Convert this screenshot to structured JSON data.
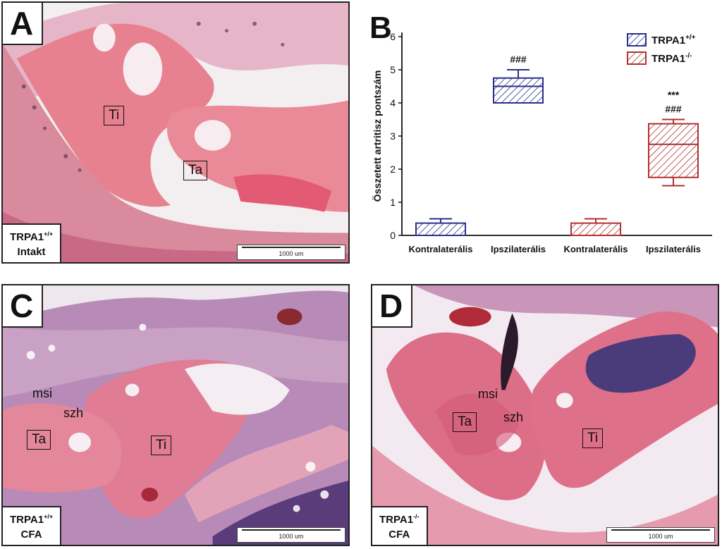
{
  "panels": {
    "a": {
      "letter": "A",
      "caption_line1": "TRPA1",
      "caption_sup": "+/+",
      "caption_line2": "Intakt",
      "scale": "1000 um",
      "labels": {
        "ti": "Ti",
        "ta": "Ta"
      }
    },
    "c": {
      "letter": "C",
      "caption_line1": "TRPA1",
      "caption_sup": "+/+",
      "caption_line2": "CFA",
      "scale": "1000 um",
      "labels": {
        "msi": "msi",
        "szh": "szh",
        "ta": "Ta",
        "ti": "Ti"
      }
    },
    "d": {
      "letter": "D",
      "caption_line1": "TRPA1",
      "caption_sup": "-/-",
      "caption_line2": "CFA",
      "scale": "1000 um",
      "labels": {
        "msi": "msi",
        "szh": "szh",
        "ta": "Ta",
        "ti": "Ti"
      }
    }
  },
  "chart_data": {
    "type": "boxplot",
    "panel_letter": "B",
    "ylabel": "Összetett artritisz pontszám",
    "ylim": [
      0,
      6
    ],
    "yticks": [
      "0",
      "1",
      "2",
      "3",
      "4",
      "5",
      "6"
    ],
    "categories": [
      "Kontralaterális",
      "Ipszilaterális",
      "Kontralaterális",
      "Ipszilaterális"
    ],
    "legend": {
      "placement": "top-right",
      "entries": [
        {
          "name": "TRPA1",
          "sup": "+/+",
          "color": "#2b2f8c"
        },
        {
          "name": "TRPA1",
          "sup": "-/-",
          "color": "#b03030"
        }
      ]
    },
    "boxes": [
      {
        "category": "Kontralaterális",
        "group": "TRPA1+/+",
        "color": "#2b2f8c",
        "min": 0,
        "q1": 0,
        "median": 0,
        "q3": 0.37,
        "max": 0.5,
        "annotations": []
      },
      {
        "category": "Ipszilaterális",
        "group": "TRPA1+/+",
        "color": "#2b2f8c",
        "min": 4,
        "q1": 4,
        "median": 4.5,
        "q3": 4.75,
        "max": 5,
        "annotations": [
          "###"
        ]
      },
      {
        "category": "Kontralaterális",
        "group": "TRPA1-/-",
        "color": "#b03030",
        "min": 0,
        "q1": 0,
        "median": 0,
        "q3": 0.37,
        "max": 0.5,
        "annotations": []
      },
      {
        "category": "Ipszilaterális",
        "group": "TRPA1-/-",
        "color": "#b03030",
        "min": 1.5,
        "q1": 1.75,
        "median": 2.75,
        "q3": 3.37,
        "max": 3.5,
        "annotations": [
          "***",
          "###"
        ]
      }
    ]
  }
}
